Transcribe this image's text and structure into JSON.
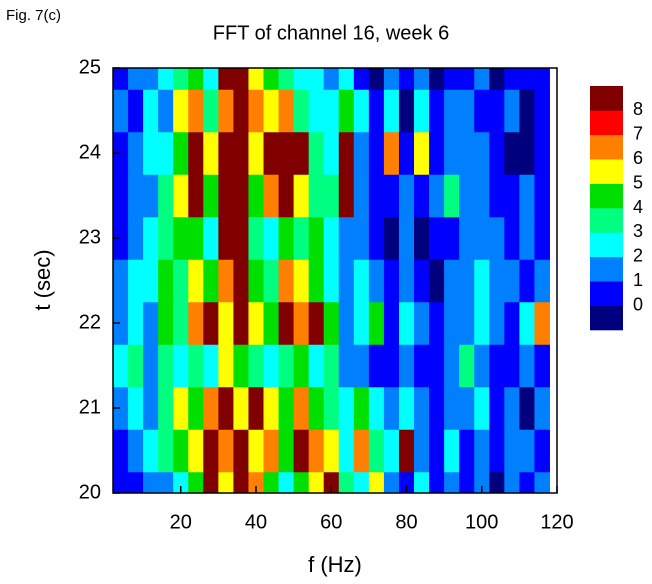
{
  "figure_label": "Fig. 7(c)",
  "chart_data": {
    "type": "heatmap",
    "title": "FFT of channel 16, week 6",
    "x_label": "f (Hz)",
    "y_label": "t (sec)",
    "x": [
      4,
      8,
      12,
      16,
      20,
      24,
      28,
      32,
      36,
      40,
      44,
      48,
      52,
      56,
      60,
      64,
      68,
      72,
      76,
      80,
      84,
      88,
      92,
      96,
      100,
      104,
      108,
      112,
      116
    ],
    "y": [
      20,
      20.5,
      21,
      21.5,
      22,
      22.5,
      23,
      23.5,
      24,
      24.5,
      25
    ],
    "z": [
      [
        0,
        0,
        1,
        1,
        2,
        4,
        8,
        5,
        8,
        6,
        4,
        2,
        4,
        5,
        8,
        3,
        2,
        5,
        1,
        0,
        2,
        0,
        1,
        0,
        1,
        -1,
        1,
        0,
        1
      ],
      [
        0,
        1,
        2,
        3,
        4,
        5,
        8,
        6,
        8,
        5,
        6,
        4,
        8,
        6,
        5,
        2,
        6,
        3,
        2,
        8,
        1,
        0,
        2,
        0,
        1,
        0,
        1,
        1,
        0
      ],
      [
        1,
        2,
        1,
        3,
        5,
        4,
        6,
        8,
        5,
        8,
        5,
        4,
        6,
        4,
        3,
        2,
        4,
        2,
        1,
        2,
        1,
        0,
        1,
        1,
        2,
        0,
        1,
        -1,
        1
      ],
      [
        2,
        3,
        1,
        3,
        2,
        3,
        2,
        5,
        4,
        3,
        2,
        3,
        4,
        2,
        3,
        1,
        1,
        0,
        0,
        1,
        0,
        0,
        1,
        3,
        1,
        0,
        0,
        1,
        0
      ],
      [
        1,
        2,
        1,
        4,
        3,
        6,
        8,
        5,
        8,
        5,
        4,
        8,
        6,
        8,
        4,
        1,
        2,
        4,
        0,
        2,
        1,
        0,
        1,
        1,
        2,
        1,
        0,
        2,
        6
      ],
      [
        1,
        2,
        2,
        4,
        3,
        5,
        4,
        6,
        8,
        4,
        3,
        6,
        5,
        4,
        2,
        1,
        2,
        1,
        0,
        1,
        0,
        -1,
        1,
        1,
        2,
        1,
        1,
        0,
        1
      ],
      [
        0,
        1,
        2,
        3,
        4,
        4,
        2,
        8,
        8,
        3,
        2,
        4,
        3,
        4,
        2,
        1,
        1,
        0,
        -1,
        1,
        -1,
        0,
        0,
        1,
        1,
        1,
        0,
        1,
        0
      ],
      [
        0,
        1,
        1,
        3,
        5,
        8,
        4,
        8,
        8,
        4,
        6,
        8,
        5,
        3,
        3,
        8,
        1,
        0,
        0,
        1,
        0,
        1,
        3,
        1,
        1,
        0,
        0,
        1,
        0
      ],
      [
        0,
        1,
        2,
        2,
        4,
        8,
        5,
        8,
        8,
        5,
        8,
        8,
        8,
        3,
        2,
        8,
        1,
        0,
        6,
        0,
        5,
        0,
        1,
        1,
        1,
        0,
        -1,
        -1,
        0
      ],
      [
        1,
        0,
        2,
        1,
        5,
        6,
        3,
        6,
        8,
        6,
        5,
        6,
        3,
        2,
        2,
        4,
        2,
        0,
        2,
        -1,
        2,
        0,
        1,
        1,
        0,
        0,
        1,
        -1,
        0
      ],
      [
        0,
        1,
        1,
        2,
        3,
        4,
        2,
        8,
        8,
        5,
        4,
        3,
        2,
        2,
        1,
        2,
        0,
        -1,
        1,
        0,
        1,
        -1,
        0,
        0,
        1,
        -1,
        0,
        0,
        0
      ]
    ],
    "levels": [
      0,
      1,
      2,
      3,
      4,
      5,
      6,
      7,
      8
    ],
    "colors": [
      "#00007f",
      "#0000ff",
      "#0080ff",
      "#00ffff",
      "#00ff80",
      "#00e000",
      "#ffff00",
      "#ff8000",
      "#ff0000",
      "#800000"
    ],
    "xlim": [
      2,
      120
    ],
    "ylim": [
      20,
      25
    ],
    "xticks": [
      20,
      40,
      60,
      80,
      100,
      120
    ],
    "yticks": [
      20,
      21,
      22,
      23,
      24,
      25
    ]
  }
}
